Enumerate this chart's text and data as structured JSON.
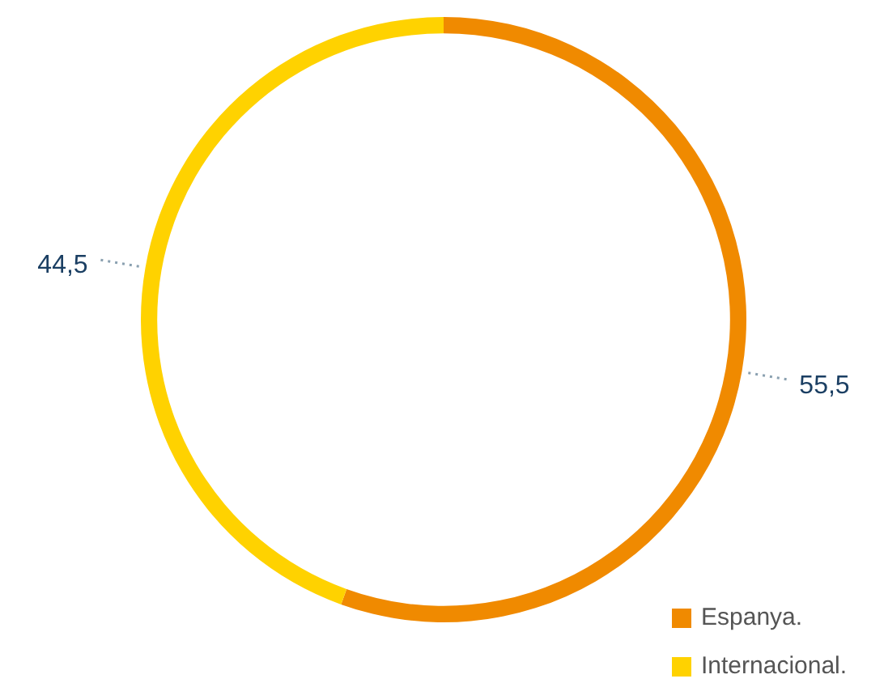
{
  "chart_data": {
    "type": "donut",
    "categories": [
      "Espanya.",
      "Internacional."
    ],
    "values": [
      55.5,
      44.5
    ],
    "value_labels": [
      "55,5",
      "44,5"
    ],
    "colors": [
      "#f08a00",
      "#ffd200"
    ],
    "legend": "bottom right"
  }
}
